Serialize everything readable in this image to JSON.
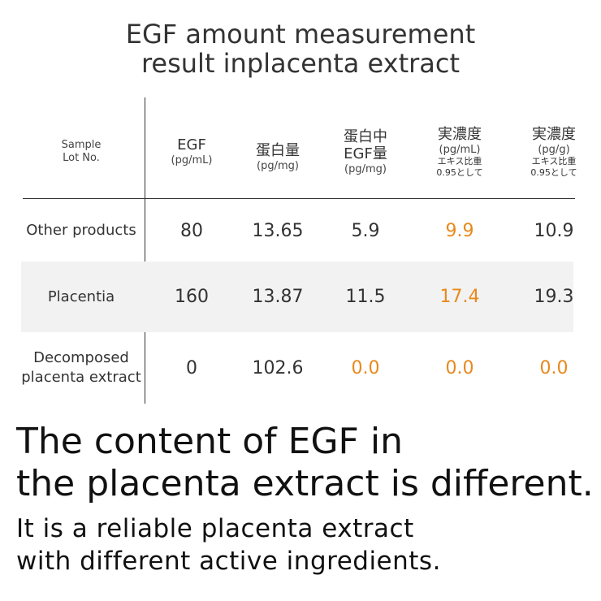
{
  "heading": [
    "EGF amount measurement",
    "result inplacenta extract"
  ],
  "table": {
    "header": [
      [
        "Sample",
        "Lot No."
      ],
      [
        "EGF",
        "(pg/mL)"
      ],
      [
        "蛋白量",
        "(pg/mg)"
      ],
      [
        "蛋白中",
        "EGF量",
        "(pg/mg)"
      ],
      [
        "実濃度",
        "(pg/mL)",
        "エキス比重",
        "0.95として"
      ],
      [
        "実濃度",
        "(pg/g)",
        "エキス比重",
        "0.95として"
      ]
    ],
    "rows": [
      [
        [
          "Other products"
        ],
        "80",
        "13.65",
        "5.9",
        "9.9",
        "10.9"
      ],
      [
        [
          "Placentia"
        ],
        "160",
        "13.87",
        "11.5",
        "17.4",
        "19.3"
      ],
      [
        [
          "Decomposed",
          "placenta extract"
        ],
        "0",
        "102.6",
        "0.0",
        "0.0",
        "0.0"
      ]
    ]
  },
  "headline": [
    "The content of EGF in",
    "the placenta extract is different."
  ],
  "body": [
    "It is a reliable placenta extract",
    "with different active ingredients."
  ]
}
